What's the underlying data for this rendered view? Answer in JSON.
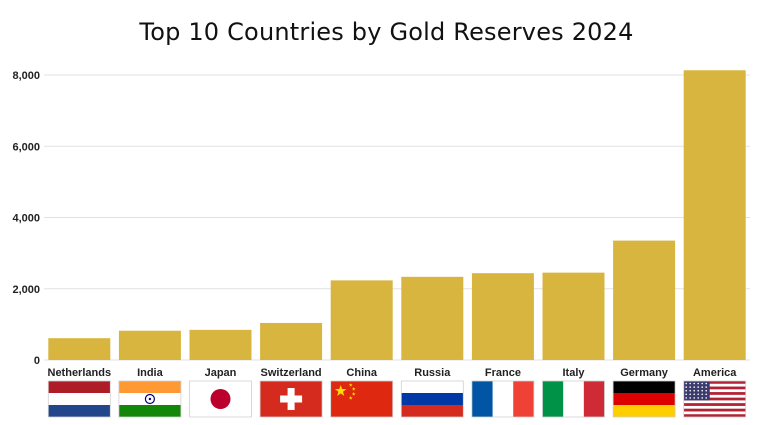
{
  "chart_data": {
    "type": "bar",
    "title": "Top 10 Countries by Gold Reserves 2024",
    "xlabel": "",
    "ylabel": "",
    "categories": [
      "Netherlands",
      "India",
      "Japan",
      "Switzerland",
      "China",
      "Russia",
      "France",
      "Italy",
      "Germany",
      "America"
    ],
    "values": [
      612,
      822,
      846,
      1040,
      2235,
      2335,
      2437,
      2452,
      3352,
      8133
    ],
    "ylim": [
      0,
      8000
    ],
    "yticks": [
      0,
      2000,
      4000,
      6000,
      8000
    ],
    "ytick_labels": [
      "0",
      "2,000",
      "4,000",
      "6,000",
      "8,000"
    ],
    "grid": true,
    "bar_color": "#D8B53F",
    "legend": "none"
  },
  "flags": [
    "netherlands-flag-icon",
    "india-flag-icon",
    "japan-flag-icon",
    "switzerland-flag-icon",
    "china-flag-icon",
    "russia-flag-icon",
    "france-flag-icon",
    "italy-flag-icon",
    "germany-flag-icon",
    "usa-flag-icon"
  ]
}
